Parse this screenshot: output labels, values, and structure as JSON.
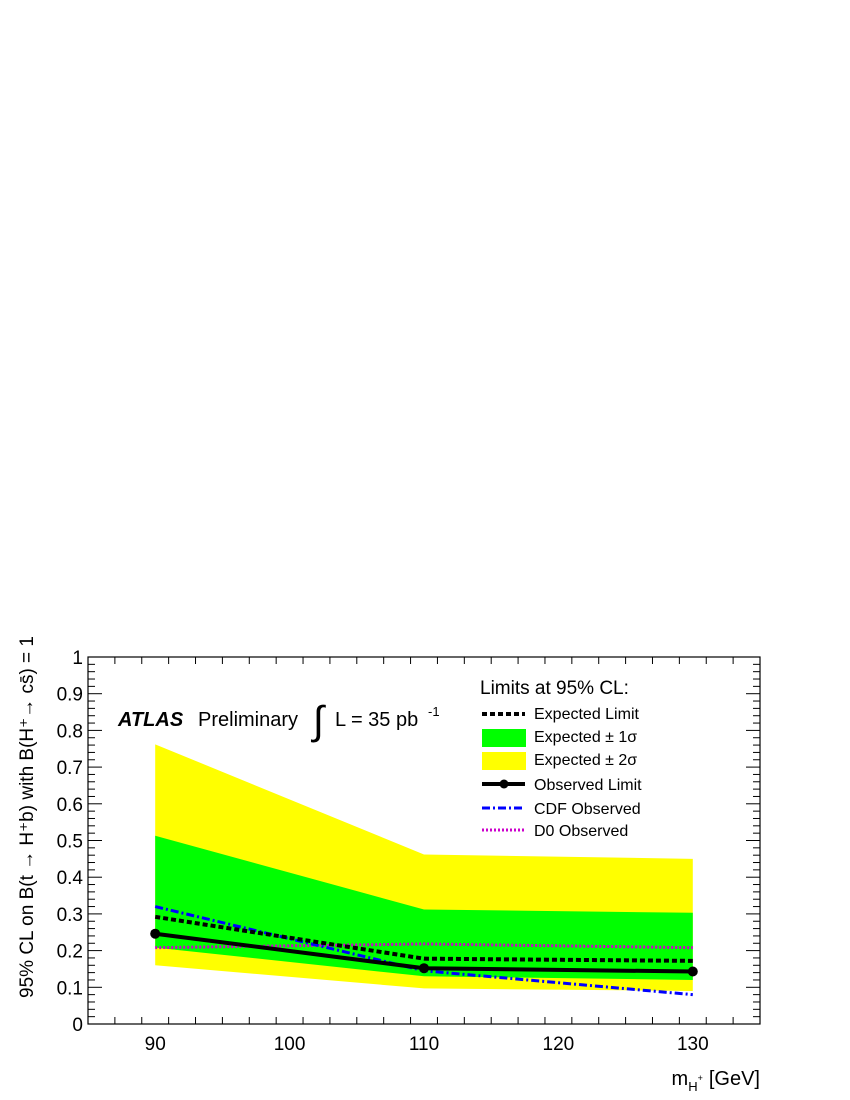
{
  "chart_data": {
    "type": "line",
    "xlabel_main": "m",
    "xlabel_sub": "H",
    "xlabel_sup": "+",
    "xlabel_unit": "[GeV]",
    "ylabel": "95% CL on B(t → H⁺b) with B(H⁺→ cs̄) = 1",
    "xlim": [
      85,
      135
    ],
    "ylim": [
      0,
      1
    ],
    "xticks": [
      90,
      100,
      110,
      120,
      130
    ],
    "yticks": [
      0,
      0.1,
      0.2,
      0.3,
      0.4,
      0.5,
      0.6,
      0.7,
      0.8,
      0.9,
      1
    ],
    "ytick_labels": [
      "0",
      "0.1",
      "0.2",
      "0.3",
      "0.4",
      "0.5",
      "0.6",
      "0.7",
      "0.8",
      "0.9",
      "1"
    ],
    "x": [
      90,
      110,
      130
    ],
    "expected": [
      0.292,
      0.178,
      0.172
    ],
    "band_1sigma_low": [
      0.208,
      0.13,
      0.12
    ],
    "band_1sigma_high": [
      0.513,
      0.312,
      0.303
    ],
    "band_2sigma_low": [
      0.16,
      0.097,
      0.09
    ],
    "band_2sigma_high": [
      0.762,
      0.462,
      0.45
    ],
    "observed": [
      0.246,
      0.152,
      0.143
    ],
    "cdf_observed": {
      "x": [
        90,
        110,
        130
      ],
      "y": [
        0.32,
        0.145,
        0.08
      ]
    },
    "d0_observed": {
      "x": [
        90,
        110,
        130
      ],
      "y": [
        0.208,
        0.218,
        0.208
      ]
    },
    "colors": {
      "band_2sigma": "#ffff00",
      "band_1sigma": "#00ff00",
      "expected": "#000000",
      "observed": "#000000",
      "cdf": "#0000ff",
      "d0": "#cc00cc"
    },
    "annotation": {
      "atlas": "ATLAS",
      "preliminary": "Preliminary",
      "integral": "∫",
      "lumi": "L = 35 pb",
      "lumi_sup": "-1"
    },
    "legend": {
      "title": "Limits at 95% CL:",
      "placement": "top-right",
      "entries": [
        "Expected Limit",
        "Expected ± 1σ",
        "Expected ± 2σ",
        "Observed Limit",
        "CDF Observed",
        "D0 Observed"
      ]
    }
  }
}
